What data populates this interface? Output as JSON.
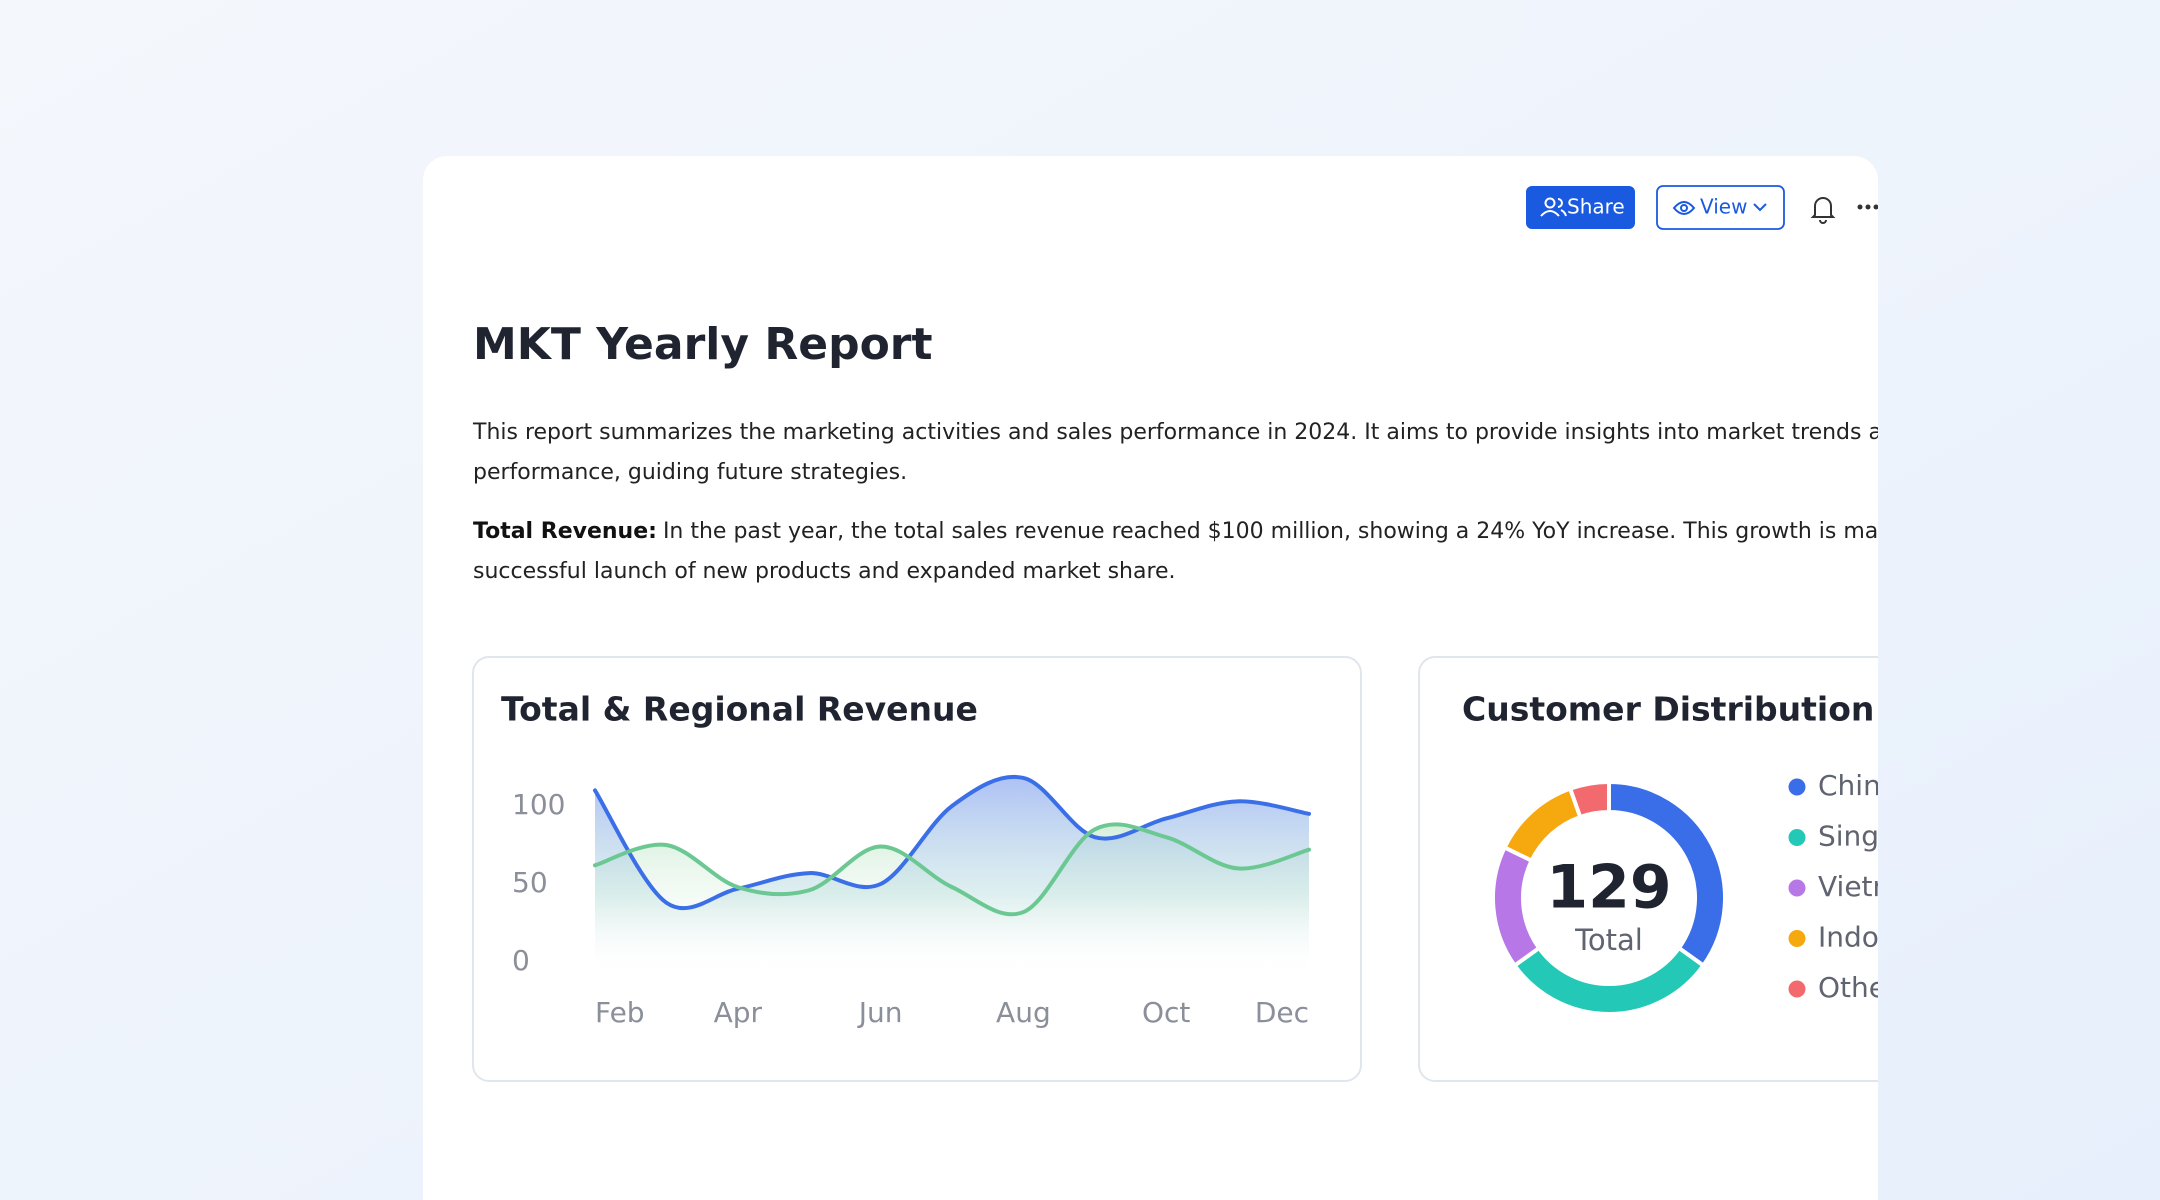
{
  "toolbar": {
    "share": "Share",
    "view": "View"
  },
  "report": {
    "title": "MKT Yearly Report",
    "intro": [
      "This report summarizes the marketing activities and sales performance in 2024. It aims to provide insights into market trends and the com",
      "performance, guiding future strategies."
    ],
    "revenue": {
      "label": "Total Revenue:",
      "lines": [
        "In the past year, the total sales revenue reached $100 million, showing a 24% YoY increase. This growth is mainly attributed",
        "successful launch of new products and expanded market share."
      ]
    }
  },
  "chart_data": [
    {
      "type": "line",
      "title": "Total & Regional Revenue",
      "categories": [
        "Feb",
        null,
        "Apr",
        null,
        "Jun",
        null,
        "Aug",
        null,
        "Oct",
        null,
        "Dec"
      ],
      "series": [
        {
          "name": null,
          "color": "#3b6fe8",
          "values": [
            110,
            38,
            47,
            57,
            50,
            100,
            118,
            80,
            92,
            103,
            95
          ]
        },
        {
          "name": null,
          "color": "#6cc892",
          "values": [
            62,
            75,
            48,
            46,
            74,
            48,
            32,
            85,
            80,
            60,
            72
          ]
        }
      ],
      "ylim": [
        0,
        100
      ],
      "yticks": [
        0,
        50,
        100
      ],
      "grid": false
    },
    {
      "type": "pie",
      "title": "Customer Distribution",
      "categories": [
        "China",
        "Singapore",
        "Vietnam",
        "Indonesia",
        "Others"
      ],
      "values": [
        45,
        39,
        22,
        16,
        7
      ],
      "colors": [
        "#3a6ee8",
        "#23c9b6",
        "#b777e6",
        "#f6a90f",
        "#f36a6e"
      ],
      "center_value": 129,
      "center_label": "Total"
    }
  ]
}
